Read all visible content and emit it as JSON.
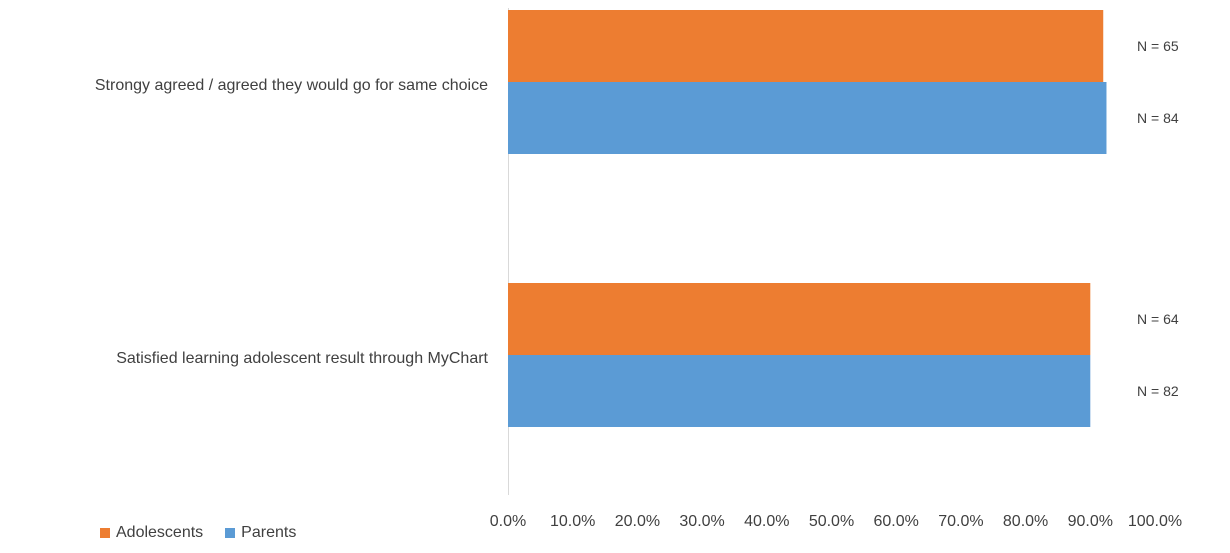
{
  "chart_data": {
    "type": "bar",
    "orientation": "horizontal",
    "categories": [
      "Strongy agreed / agreed they would go for same choice",
      "Satisfied learning adolescent result through MyChart"
    ],
    "series": [
      {
        "name": "Adolescents",
        "color": "#ED7D31",
        "values": [
          0.92,
          0.9
        ],
        "labels": [
          "N = 65",
          "N = 64"
        ]
      },
      {
        "name": "Parents",
        "color": "#5B9BD5",
        "values": [
          0.925,
          0.9
        ],
        "labels": [
          "N = 84",
          "N = 82"
        ]
      }
    ],
    "xlim": [
      0,
      1
    ],
    "xticks": [
      "0.0%",
      "10.0%",
      "20.0%",
      "30.0%",
      "40.0%",
      "50.0%",
      "60.0%",
      "70.0%",
      "80.0%",
      "90.0%",
      "100.0%"
    ],
    "grid": false,
    "legend_position": "bottom-left"
  },
  "legend": {
    "adolescents": "Adolescents",
    "parents": "Parents"
  }
}
